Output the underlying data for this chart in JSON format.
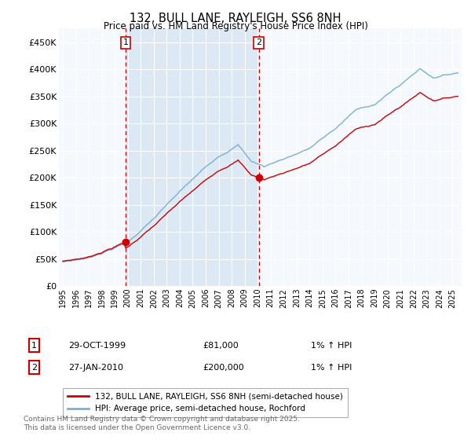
{
  "title": "132, BULL LANE, RAYLEIGH, SS6 8NH",
  "subtitle": "Price paid vs. HM Land Registry's House Price Index (HPI)",
  "legend_line1": "132, BULL LANE, RAYLEIGH, SS6 8NH (semi-detached house)",
  "legend_line2": "HPI: Average price, semi-detached house, Rochford",
  "footnote": "Contains HM Land Registry data © Crown copyright and database right 2025.\nThis data is licensed under the Open Government Licence v3.0.",
  "sale1_date": "29-OCT-1999",
  "sale1_price": "£81,000",
  "sale1_hpi": "1% ↑ HPI",
  "sale2_date": "27-JAN-2010",
  "sale2_price": "£200,000",
  "sale2_hpi": "1% ↑ HPI",
  "background_color": "#dce9f5",
  "grid_color": "#ffffff",
  "line_color_red": "#cc0000",
  "line_color_blue": "#7ab0d4",
  "shading_color": "#dce9f5",
  "marker_color": "#cc0000",
  "vline_color": "#cc0000",
  "ylim": [
    0,
    475000
  ],
  "yticks": [
    0,
    50000,
    100000,
    150000,
    200000,
    250000,
    300000,
    350000,
    400000,
    450000
  ],
  "ytick_labels": [
    "£0",
    "£50K",
    "£100K",
    "£150K",
    "£200K",
    "£250K",
    "£300K",
    "£350K",
    "£400K",
    "£450K"
  ],
  "xlim_start": 1994.7,
  "xlim_end": 2025.7,
  "sale1_x": 1999.83,
  "sale2_x": 2010.08,
  "sale1_y": 81000,
  "sale2_y": 200000
}
